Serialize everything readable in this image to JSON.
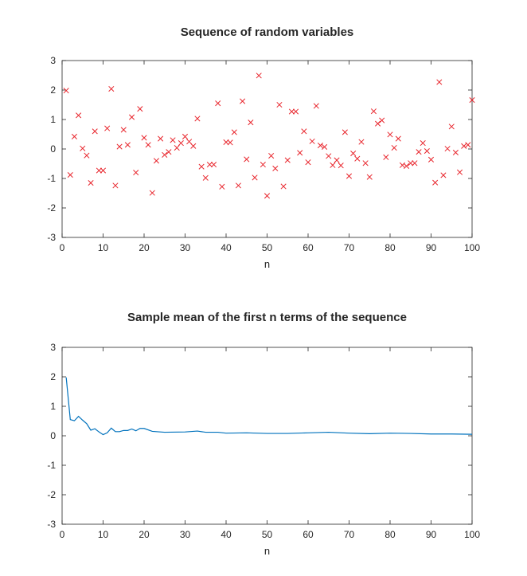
{
  "chart_data": [
    {
      "type": "scatter",
      "title": "Sequence of random variables",
      "xlabel": "n",
      "ylabel": "",
      "xlim": [
        0,
        100
      ],
      "ylim": [
        -3,
        3
      ],
      "xticks": [
        0,
        10,
        20,
        30,
        40,
        50,
        60,
        70,
        80,
        90,
        100
      ],
      "yticks": [
        -3,
        -2,
        -1,
        0,
        1,
        2,
        3
      ],
      "grid": false,
      "marker": "x",
      "color": "#e8262d",
      "x": [
        1,
        2,
        3,
        4,
        5,
        6,
        7,
        8,
        9,
        10,
        11,
        12,
        13,
        14,
        15,
        16,
        17,
        18,
        19,
        20,
        21,
        22,
        23,
        24,
        25,
        26,
        27,
        28,
        29,
        30,
        31,
        32,
        33,
        34,
        35,
        36,
        37,
        38,
        39,
        40,
        41,
        42,
        43,
        44,
        45,
        46,
        47,
        48,
        49,
        50,
        51,
        52,
        53,
        54,
        55,
        56,
        57,
        58,
        59,
        60,
        61,
        62,
        63,
        64,
        65,
        66,
        67,
        68,
        69,
        70,
        71,
        72,
        73,
        74,
        75,
        76,
        77,
        78,
        79,
        80,
        81,
        82,
        83,
        84,
        85,
        86,
        87,
        88,
        89,
        90,
        91,
        92,
        93,
        94,
        95,
        96,
        97,
        98,
        99,
        100
      ],
      "y": [
        1.98,
        -0.88,
        0.42,
        1.14,
        0.02,
        -0.22,
        -1.15,
        0.6,
        -0.73,
        -0.73,
        0.7,
        2.04,
        -1.24,
        0.08,
        0.65,
        0.14,
        1.08,
        -0.8,
        1.36,
        0.38,
        0.14,
        -1.49,
        -0.4,
        0.35,
        -0.2,
        -0.1,
        0.3,
        0.04,
        0.2,
        0.42,
        0.25,
        0.1,
        1.03,
        -0.6,
        -0.98,
        -0.53,
        -0.53,
        1.55,
        -1.28,
        0.23,
        0.22,
        0.57,
        -1.24,
        1.62,
        -0.35,
        0.9,
        -0.97,
        2.49,
        -0.53,
        -1.59,
        -0.23,
        -0.66,
        1.5,
        -1.27,
        -0.38,
        1.27,
        1.27,
        -0.13,
        0.6,
        -0.45,
        0.26,
        1.46,
        0.12,
        0.07,
        -0.24,
        -0.55,
        -0.38,
        -0.56,
        0.57,
        -0.92,
        -0.15,
        -0.33,
        0.24,
        -0.48,
        -0.95,
        1.28,
        0.86,
        0.97,
        -0.28,
        0.49,
        0.04,
        0.35,
        -0.55,
        -0.58,
        -0.48,
        -0.48,
        -0.1,
        0.2,
        -0.07,
        -0.36,
        -1.14,
        2.27,
        -0.89,
        0.01,
        0.76,
        -0.12,
        -0.79,
        0.1,
        0.14,
        1.66
      ]
    },
    {
      "type": "line",
      "title": "Sample mean of the first n terms of the sequence",
      "xlabel": "n",
      "ylabel": "",
      "xlim": [
        0,
        100
      ],
      "ylim": [
        -3,
        3
      ],
      "xticks": [
        0,
        10,
        20,
        30,
        40,
        50,
        60,
        70,
        80,
        90,
        100
      ],
      "yticks": [
        -3,
        -2,
        -1,
        0,
        1,
        2,
        3
      ],
      "grid": false,
      "color": "#0072bd",
      "x": [
        1,
        2,
        3,
        4,
        5,
        6,
        7,
        8,
        9,
        10,
        11,
        12,
        13,
        14,
        15,
        16,
        17,
        18,
        19,
        20,
        22,
        25,
        30,
        33,
        35,
        38,
        40,
        45,
        50,
        55,
        60,
        65,
        70,
        75,
        80,
        85,
        90,
        95,
        100
      ],
      "y": [
        1.98,
        0.55,
        0.51,
        0.66,
        0.53,
        0.41,
        0.19,
        0.24,
        0.13,
        0.04,
        0.1,
        0.26,
        0.14,
        0.14,
        0.18,
        0.18,
        0.23,
        0.17,
        0.25,
        0.25,
        0.15,
        0.12,
        0.13,
        0.16,
        0.12,
        0.12,
        0.09,
        0.1,
        0.08,
        0.08,
        0.1,
        0.12,
        0.09,
        0.07,
        0.09,
        0.08,
        0.06,
        0.06,
        0.05
      ]
    }
  ]
}
